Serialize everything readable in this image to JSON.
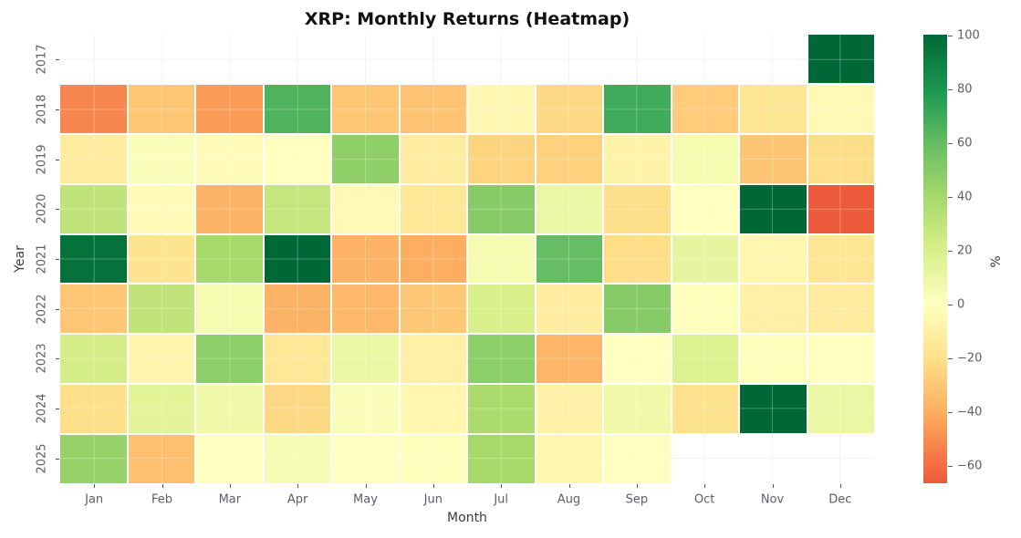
{
  "chart_data": {
    "type": "heatmap",
    "title": "XRP: Monthly Returns (Heatmap)",
    "xlabel": "Month",
    "ylabel": "Year",
    "legend_position": "right-colorbar",
    "grid": true,
    "months": [
      "Jan",
      "Feb",
      "Mar",
      "Apr",
      "May",
      "Jun",
      "Jul",
      "Aug",
      "Sep",
      "Oct",
      "Nov",
      "Dec"
    ],
    "years": [
      "2017",
      "2018",
      "2019",
      "2020",
      "2021",
      "2022",
      "2023",
      "2024",
      "2025"
    ],
    "values": [
      [
        null,
        null,
        null,
        null,
        null,
        null,
        null,
        null,
        null,
        null,
        null,
        100
      ],
      [
        -52,
        -30,
        -46,
        66,
        -30,
        -32,
        -5,
        -23,
        70,
        -28,
        -17,
        -4
      ],
      [
        -13,
        2,
        -2,
        0,
        47,
        -12,
        -25,
        -26,
        -8,
        5,
        -31,
        -21
      ],
      [
        30,
        -2,
        -38,
        28,
        -4,
        -15,
        50,
        10,
        -20,
        0,
        100,
        -66
      ],
      [
        96,
        -18,
        40,
        100,
        -38,
        -40,
        5,
        60,
        -21,
        12,
        -6,
        -16
      ],
      [
        -30,
        30,
        5,
        -38,
        -36,
        -30,
        20,
        -12,
        50,
        1,
        -10,
        -13
      ],
      [
        22,
        -7,
        48,
        -15,
        10,
        -10,
        48,
        -37,
        0,
        18,
        1,
        0
      ],
      [
        -20,
        15,
        8,
        -23,
        2,
        -6,
        38,
        -9,
        8,
        -19,
        100,
        10
      ],
      [
        45,
        -33,
        0,
        4,
        0,
        1,
        40,
        -6,
        0,
        null,
        null,
        null
      ]
    ],
    "colorbar": {
      "label": "%",
      "tick_values": [
        100,
        80,
        60,
        40,
        20,
        0,
        -20,
        -40,
        -60
      ],
      "tick_labels": [
        "100",
        "80",
        "60",
        "40",
        "20",
        "0",
        "−20",
        "−40",
        "−60"
      ],
      "displayed_range": [
        -66.5,
        100.5
      ],
      "color_mapping_range": [
        -100,
        100
      ],
      "colormap": "RdYlGn"
    }
  }
}
